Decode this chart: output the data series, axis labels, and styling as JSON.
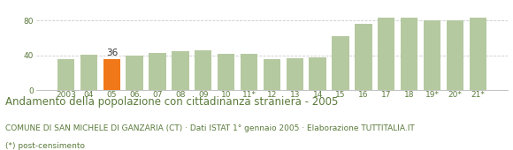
{
  "categories": [
    "2003",
    "04",
    "05",
    "06",
    "07",
    "08",
    "09",
    "10",
    "11*",
    "12",
    "13",
    "14",
    "15",
    "16",
    "17",
    "18",
    "19*",
    "20*",
    "21*"
  ],
  "values": [
    36,
    41,
    36,
    40,
    43,
    45,
    46,
    42,
    42,
    36,
    37,
    38,
    62,
    76,
    83,
    83,
    80,
    80,
    83
  ],
  "highlight_index": 2,
  "highlight_value": 36,
  "bar_color": "#b5c9a0",
  "highlight_color": "#f07818",
  "title": "Andamento della popolazione con cittadinanza straniera - 2005",
  "subtitle": "COMUNE DI SAN MICHELE DI GANZARIA (CT) · Dati ISTAT 1° gennaio 2005 · Elaborazione TUTTITALIA.IT",
  "footnote": "(*) post-censimento",
  "ylim": [
    0,
    95
  ],
  "yticks": [
    0,
    40,
    80
  ],
  "grid_color": "#cccccc",
  "background_color": "#ffffff",
  "text_color": "#5a7a3a",
  "title_fontsize": 8.5,
  "subtitle_fontsize": 6.5,
  "footnote_fontsize": 6.5,
  "tick_fontsize": 6.5,
  "label_fontsize": 7.5
}
